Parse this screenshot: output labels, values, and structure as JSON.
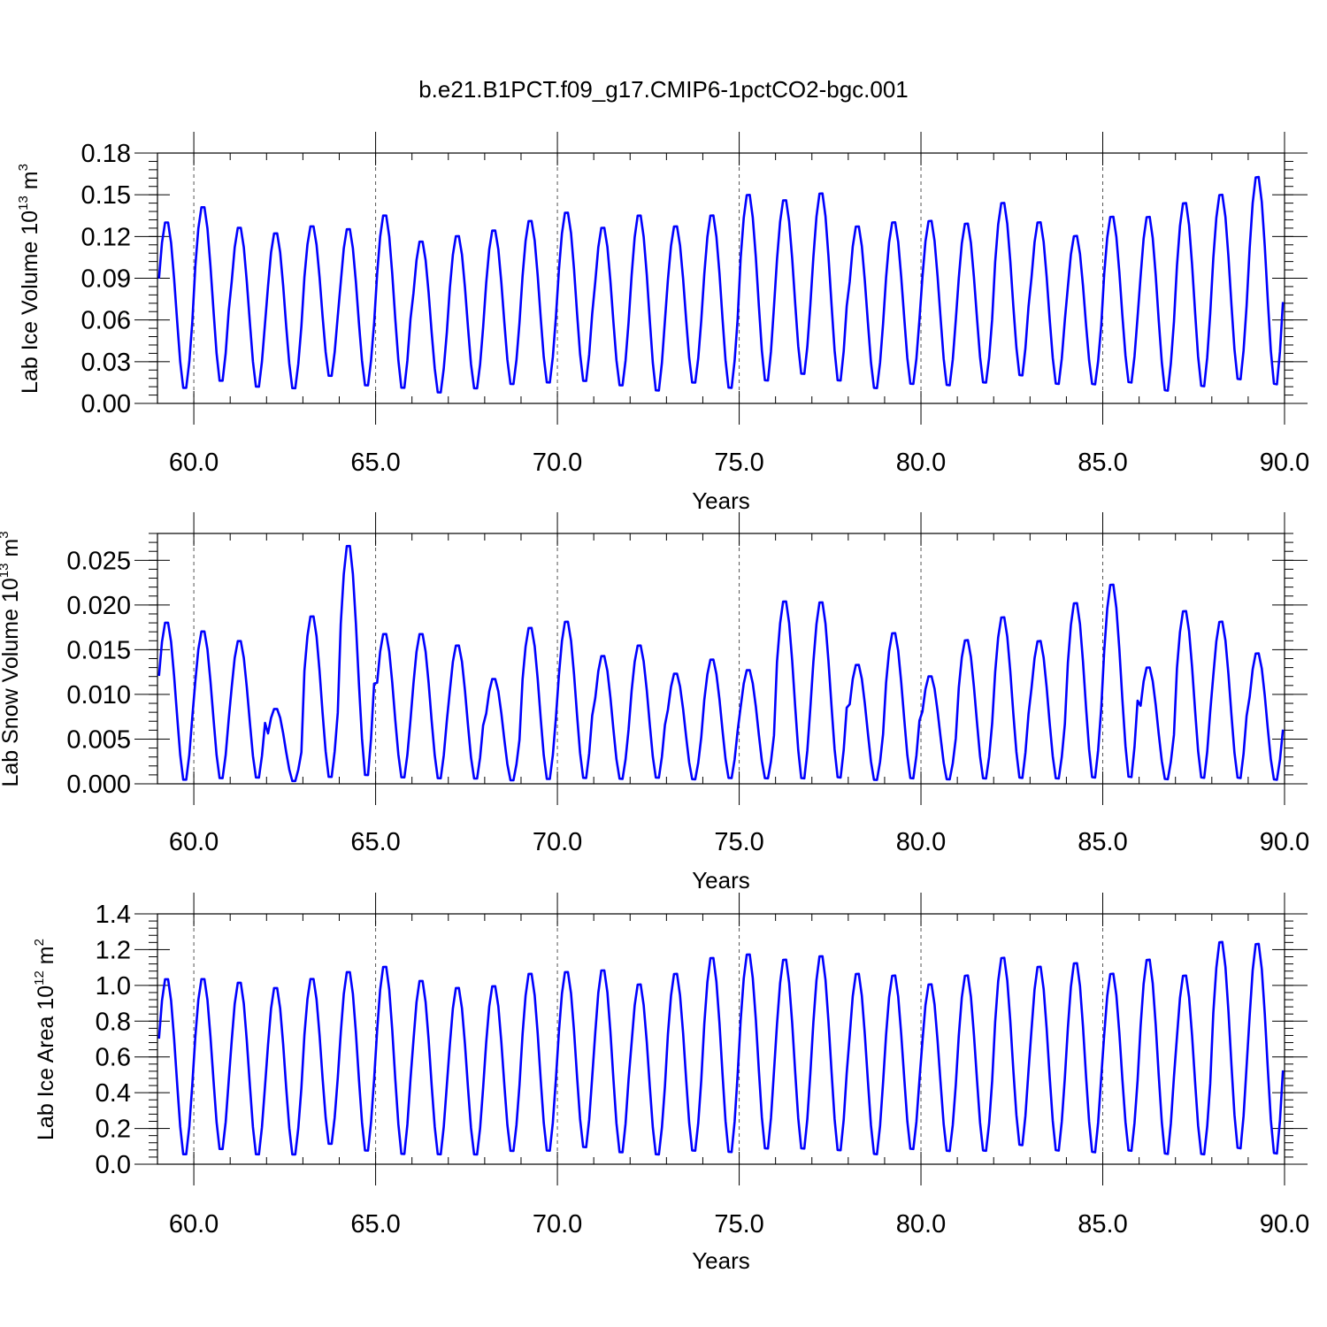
{
  "figure": {
    "title": "b.e21.B1PCT.f09_g17.CMIP6-1pctCO2-bgc.001"
  },
  "chart_data": [
    {
      "type": "line",
      "name": "ice_volume",
      "xlabel": "Years",
      "ylabel": "Lab Ice Volume 10",
      "ylabel_exp": "13",
      "ylabel_unit": " m",
      "ylabel_unit_exp": "3",
      "xlim": [
        59.0,
        90.0
      ],
      "ylim": [
        0.0,
        0.18
      ],
      "xticks": [
        "60.0",
        "65.0",
        "70.0",
        "75.0",
        "80.0",
        "85.0",
        "90.0"
      ],
      "yticks": [
        "0.00",
        "0.03",
        "0.06",
        "0.09",
        "0.12",
        "0.15",
        "0.18"
      ],
      "grid_x_dashed": true,
      "color": "#0000ff",
      "x_start": 59.0417,
      "x_step": 0.08333,
      "annual_peaks": [
        0.132,
        0.143,
        0.128,
        0.124,
        0.129,
        0.127,
        0.137,
        0.118,
        0.122,
        0.126,
        0.133,
        0.139,
        0.128,
        0.137,
        0.129,
        0.137,
        0.152,
        0.148,
        0.153,
        0.129,
        0.132,
        0.133,
        0.131,
        0.146,
        0.132,
        0.122,
        0.136,
        0.136,
        0.146,
        0.152,
        0.165
      ],
      "annual_minima": [
        0.008,
        0.013,
        0.009,
        0.008,
        0.017,
        0.01,
        0.008,
        0.005,
        0.008,
        0.011,
        0.012,
        0.013,
        0.01,
        0.006,
        0.012,
        0.008,
        0.013,
        0.018,
        0.013,
        0.008,
        0.011,
        0.01,
        0.012,
        0.017,
        0.011,
        0.011,
        0.012,
        0.006,
        0.009,
        0.014,
        0.01
      ]
    },
    {
      "type": "line",
      "name": "snow_volume",
      "xlabel": "Years",
      "ylabel": "Lab Snow Volume 10",
      "ylabel_exp": "13",
      "ylabel_unit": " m",
      "ylabel_unit_exp": "3",
      "xlim": [
        59.0,
        90.0
      ],
      "ylim": [
        0.0,
        0.028
      ],
      "xticks": [
        "60.0",
        "65.0",
        "70.0",
        "75.0",
        "80.0",
        "85.0",
        "90.0"
      ],
      "yticks": [
        "0.000",
        "0.005",
        "0.010",
        "0.015",
        "0.020",
        "0.025"
      ],
      "ytick_values": [
        0.0,
        0.005,
        0.01,
        0.015,
        0.02,
        0.025
      ],
      "grid_x_dashed": true,
      "color": "#0000ff",
      "x_start": 59.0417,
      "x_step": 0.08333,
      "annual_peaks": [
        0.0183,
        0.0173,
        0.0162,
        0.0085,
        0.019,
        0.027,
        0.017,
        0.017,
        0.0157,
        0.0119,
        0.0177,
        0.0184,
        0.0145,
        0.0157,
        0.0125,
        0.0141,
        0.0129,
        0.0207,
        0.0206,
        0.0135,
        0.0171,
        0.0122,
        0.0163,
        0.0189,
        0.0162,
        0.0205,
        0.0226,
        0.0132,
        0.0196,
        0.0184,
        0.0148
      ],
      "annual_minima": [
        0.0,
        0.0002,
        0.0003,
        0.0001,
        0.0003,
        0.0003,
        0.0003,
        0.0002,
        0.0002,
        0.0001,
        0.0001,
        0.0002,
        0.0002,
        0.0003,
        0.0002,
        0.0003,
        0.0003,
        0.0001,
        0.0002,
        0.0001,
        0.0002,
        0.0002,
        0.0002,
        0.0002,
        0.0002,
        0.0002,
        0.0002,
        0.0002,
        0.0002,
        0.0002,
        0.0001
      ]
    },
    {
      "type": "line",
      "name": "ice_area",
      "xlabel": "Years",
      "ylabel": "Lab Ice Area 10",
      "ylabel_exp": "12",
      "ylabel_unit": " m",
      "ylabel_unit_exp": "2",
      "xlim": [
        59.0,
        90.0
      ],
      "ylim": [
        0.0,
        1.4
      ],
      "xticks": [
        "60.0",
        "65.0",
        "70.0",
        "75.0",
        "80.0",
        "85.0",
        "90.0"
      ],
      "yticks": [
        "0.0",
        "0.2",
        "0.4",
        "0.6",
        "0.8",
        "1.0",
        "1.2",
        "1.4"
      ],
      "grid_x_dashed": true,
      "color": "#0000ff",
      "x_start": 59.0417,
      "x_step": 0.08333,
      "annual_peaks": [
        1.05,
        1.05,
        1.03,
        1.0,
        1.05,
        1.09,
        1.12,
        1.04,
        1.0,
        1.01,
        1.08,
        1.09,
        1.1,
        1.02,
        1.08,
        1.17,
        1.19,
        1.16,
        1.18,
        1.08,
        1.07,
        1.02,
        1.07,
        1.17,
        1.12,
        1.14,
        1.08,
        1.16,
        1.07,
        1.26,
        1.25
      ],
      "annual_minima": [
        0.03,
        0.06,
        0.03,
        0.03,
        0.09,
        0.05,
        0.03,
        0.03,
        0.03,
        0.05,
        0.05,
        0.07,
        0.04,
        0.03,
        0.05,
        0.04,
        0.06,
        0.06,
        0.05,
        0.03,
        0.06,
        0.05,
        0.05,
        0.08,
        0.05,
        0.04,
        0.05,
        0.03,
        0.03,
        0.06,
        0.03
      ]
    }
  ]
}
